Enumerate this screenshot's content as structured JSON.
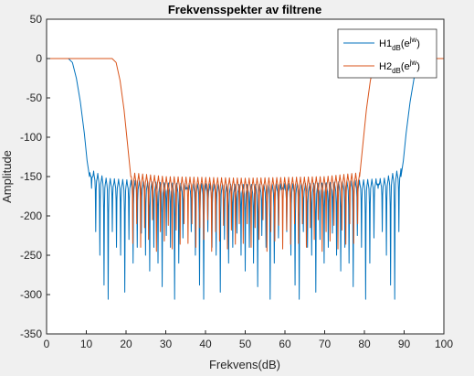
{
  "chart_data": {
    "type": "line",
    "title": "Frekvensspekter av filtrene",
    "xlabel": "Frekvens(dB)",
    "ylabel": "Amplitude",
    "xlim": [
      0,
      100
    ],
    "ylim": [
      -350,
      50
    ],
    "xticks": [
      0,
      10,
      20,
      30,
      40,
      50,
      60,
      70,
      80,
      90,
      100
    ],
    "xtick_labels": [
      "0",
      "10",
      "20",
      "30",
      "40",
      "50",
      "60",
      "70",
      "80",
      "90",
      "100"
    ],
    "yticks": [
      -350,
      -300,
      -250,
      -200,
      -150,
      -100,
      -50,
      0,
      50
    ],
    "ytick_labels": [
      "-350",
      "-300",
      "-250",
      "-200",
      "-150",
      "-100",
      "-50",
      "0",
      "50"
    ],
    "grid": false,
    "legend": {
      "placement": "top-right",
      "entries": [
        {
          "base": "H1",
          "sub": "dB",
          "paren_open": "(e",
          "sup": "jw",
          "paren_close": ")"
        },
        {
          "base": "H2",
          "sub": "dB",
          "paren_open": "(e",
          "sup": "jw",
          "paren_close": ")"
        }
      ]
    },
    "series": [
      {
        "color": "#0072bd",
        "passband": [
          [
            0,
            0
          ],
          [
            5.5,
            0
          ],
          [
            97,
            0
          ],
          [
            100,
            0
          ]
        ],
        "transition_left": [
          [
            5.5,
            0
          ],
          [
            6.5,
            -5
          ],
          [
            7.5,
            -25
          ],
          [
            8.5,
            -55
          ],
          [
            9.5,
            -95
          ],
          [
            10.2,
            -130
          ],
          [
            10.8,
            -150
          ]
        ],
        "transition_right": [
          [
            89.2,
            -150
          ],
          [
            89.8,
            -130
          ],
          [
            90.5,
            -95
          ],
          [
            91.5,
            -55
          ],
          [
            92.5,
            -25
          ],
          [
            93.5,
            -5
          ],
          [
            94.5,
            0
          ]
        ],
        "stopband_range": [
          10.8,
          89.2
        ],
        "lobe_width": 1.05,
        "envelope_peaks": [
          [
            10.8,
            -140
          ],
          [
            15,
            -152
          ],
          [
            30,
            -158
          ],
          [
            50,
            -160
          ],
          [
            70,
            -158
          ],
          [
            85,
            -152
          ],
          [
            89.2,
            -140
          ]
        ],
        "null_depths_sample": [
          -165,
          -220,
          -250,
          -288,
          -306,
          -220,
          -240,
          -250,
          -297,
          -230,
          -260,
          -240,
          -222,
          -250,
          -270,
          -240,
          -260,
          -290,
          -225,
          -240,
          -306,
          -260,
          -228
        ]
      },
      {
        "color": "#d95319",
        "passband": [
          [
            0,
            0
          ],
          [
            16.5,
            0
          ],
          [
            84,
            0
          ],
          [
            100,
            0
          ]
        ],
        "transition_left": [
          [
            16.5,
            0
          ],
          [
            17.5,
            -5
          ],
          [
            18.5,
            -28
          ],
          [
            19.5,
            -65
          ],
          [
            20.4,
            -110
          ],
          [
            21.2,
            -150
          ]
        ],
        "transition_right": [
          [
            78.8,
            -150
          ],
          [
            79.6,
            -110
          ],
          [
            80.5,
            -65
          ],
          [
            81.5,
            -28
          ],
          [
            82.5,
            -5
          ],
          [
            83.5,
            0
          ]
        ],
        "stopband_range": [
          21.2,
          78.8
        ],
        "lobe_width": 1.0,
        "envelope_peaks": [
          [
            21.2,
            -145
          ],
          [
            30,
            -150
          ],
          [
            50,
            -152
          ],
          [
            70,
            -150
          ],
          [
            78.8,
            -145
          ]
        ],
        "null_depths_sample": [
          -235,
          -210,
          -240,
          -215,
          -230,
          -205,
          -245,
          -220,
          -232,
          -212,
          -242,
          -218,
          -236,
          -210
        ]
      }
    ]
  }
}
